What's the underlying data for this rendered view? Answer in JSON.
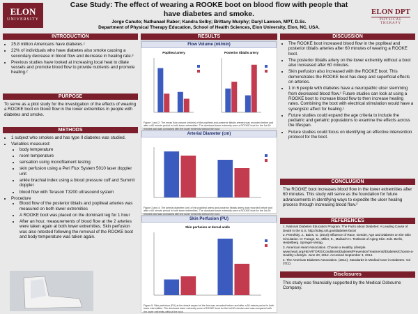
{
  "header": {
    "left_logo": {
      "line1": "ELON",
      "line2": "UNIVERSITY"
    },
    "right_logo": {
      "line1": "ELON DPT",
      "line2": "PHYSICAL THERAPY"
    },
    "title": "Case Study: The effect of wearing a ROOKE boot on blood flow with people that have diabetes and smoke.",
    "authors": "Jorge Canuto; Nathanael Raber; Kandra Selby; Brittany Murphy; Daryl Lawson, MPT, D.Sc.",
    "affiliation": "Department of Physical Therapy Education, School of Health Sciences, Elon University, Elon, NC, USA."
  },
  "introduction": {
    "heading": "INTRODUCTION",
    "bullets": [
      "25.8 million Americans have diabetes.¹",
      "22% of individuals who have diabetes also smoke causing a secondary decrease in blood flow and decrease in healing rate.³",
      "Previous studies have looked at increasing local heat to dilate vessels and promote blood flow to provide nutrients and promote healing.²"
    ]
  },
  "purpose": {
    "heading": "PURPOSE",
    "text": "To serve as a pilot study for the investigation of the effects of wearing a ROOKE boot on blood flow in the lower extremities in people with diabetes and smoke."
  },
  "methods": {
    "heading": "METHODS",
    "subject": "1 subject who smokes and has type II diabetes was studied.",
    "variables_label": "Variables measured:",
    "variables": [
      "body temperature",
      "room temperature",
      "sensation using monofilament testing",
      "skin perfusion using a Peri Flux System 5010 laser doppler unit",
      "ankle brachial index using a blood pressure cuff and Summit doppler",
      "blood flow with Terason T3200 ultrasound system"
    ],
    "procedure_label": "Procedure",
    "procedure": [
      "Blood flow of the posterior tibialis and popliteal arteries was measured on both lower extremities",
      "A ROOKE boot was placed on the dominant leg for 1 hour",
      "After an hour, measurements of blood flow at the 2 arteries were taken again at both lower extremities. Skin perfusion was also retested following the removal of the ROOKE boot and body temperature was taken again."
    ]
  },
  "results": {
    "heading": "RESULTS",
    "figures": [
      {
        "heading": "Flow Volume (ml/min)",
        "charts": [
          {
            "title": "Popliteal artery",
            "ylim": [
              0,
              160
            ],
            "series": [
              {
                "color": "#3b5bbf",
                "values": [
                  130,
                  60
                ]
              },
              {
                "color": "#c23b4e",
                "values": [
                  55,
                  40
                ]
              }
            ]
          },
          {
            "title": "Posterior tibialis artery",
            "ylim": [
              0,
              80
            ],
            "series": [
              {
                "color": "#3b5bbf",
                "values": [
                  35,
                  25
                ]
              },
              {
                "color": "#c23b4e",
                "values": [
                  45,
                  70
                ]
              }
            ]
          }
        ],
        "caption": "Figure 1 and 2: The mean flow volume (ml/min) of the popliteal and posterior tibialis arteries was recorded before and after a 60 minute period in both lower extremities. The dominant lower extremity wore a ROOKE boot for the 1st 60 minutes and was compared with the lower extremity without the boot."
      },
      {
        "heading": "Arterial Diameter (cm)",
        "charts": [
          {
            "title": "",
            "ylim": [
              0,
              0.6
            ],
            "series": [
              {
                "color": "#3b5bbf",
                "values": [
                  0.55,
                  0.45
                ]
              },
              {
                "color": "#c23b4e",
                "values": [
                  0.5,
                  0.35
                ]
              }
            ]
          }
        ],
        "caption": "Figure 3 and 4: The arterial diameter (cm) of the popliteal artery and posterior tibialis artery was recorded before and after a 60 minute period in both lower extremities. The dominant lower extremity wore a ROOKE boot for the 1st 60 minutes and was compared with the lower extremity without the boot."
      },
      {
        "heading": "Skin Perfusion (PU)",
        "charts": [
          {
            "title": "Skin perfusion at dorsal ankle",
            "ylim": [
              0,
              10
            ],
            "series": [
              {
                "color": "#3b5bbf",
                "values": [
                  2.5,
                  9
                ]
              },
              {
                "color": "#c23b4e",
                "values": [
                  3,
                  5
                ]
              }
            ]
          }
        ],
        "caption": "Figure 5: Skin perfusion (PU) at the dorsal aspect of the foot was recorded before and after a 60 minute period in both lower extremities. The dominant lower extremity wore a ROOKE boot for the full 60 minutes and was compared with the lower extremity without the boot."
      }
    ]
  },
  "discussion": {
    "heading": "DISCUSSION",
    "bullets": [
      "The ROOKE boot increased blood flow in the popliteal and posterior tibialis arteries after 60 minutes of wearing a ROOKE boot.",
      "The posterior tibialis artery on the lower extremity without a boot also increased after 60 minutes.",
      "Skin perfusion also increased with the ROOKE boot. This demonstrates the ROOKE boot has deep and superficial effects on arteries.",
      "1 in 6 people with diabetes have a neuropathic ulcer stemming from decreased blood flow.¹ Future studies can look at using a ROOKE boot to increase blood flow to then increase healing rates. Combining the boot with electrical stimulation would have a synergistic affect for healing.¹",
      "Future studies could expand the age criteria to include the pediatric and geriatric populations to examine the effects across the lifespan.",
      "Future studies could focus on identifying an effective intervention protocol for the boot."
    ]
  },
  "conclusion": {
    "heading": "CONCLUSION",
    "text": "The ROOKE boot increases blood flow in the lower extremities after 60 minutes. This study will serve as the foundation for future advancements in identifying ways to expedite the ulcer healing process through increasing blood flow.²"
  },
  "references": {
    "heading": "REFERENCES",
    "items": [
      "1. National Diabetes Education Program. The Facts about Diabetes: A Leading Cause of Death in the U.S. http://ndep.nih.gov/diabetes-facts/",
      "2. Petrofsky, J., Bains, G. (2010) Influence of Race, Gender, Age and Diabetes on the Skin Circulation. In: Farage, M., Miller, K., Maibach H. Textbook of Aging Skin. Eds. Berlin, Heidelberg. Springer-Verlag.",
      "3. American Heart Association. Choose a Healthy Lifestyle. www.heart.org/HEARTORG/Conditions/Diabetes/PreventionTreatmentofDiabetes/Choose-a-Healthy-Lifestyle. June 20, 2012. Accessed September 3, 2014.",
      "4. The American Diabetes Association. (2014). Standards in Medical Care in Diabetes. Vol 37(1)."
    ]
  },
  "disclosures": {
    "heading": "Disclosures",
    "text": "This study was financially supported by the Medical Osbourne Company."
  }
}
